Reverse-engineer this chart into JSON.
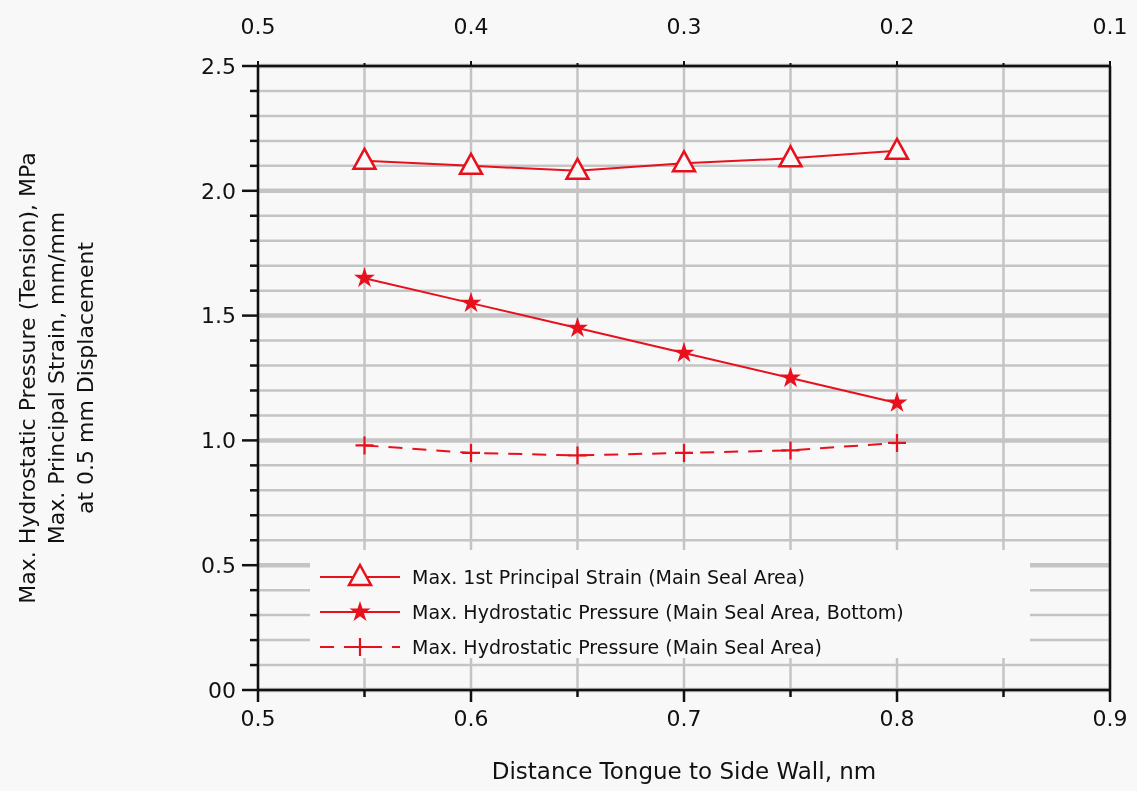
{
  "chart_data": {
    "type": "line",
    "xlabel": "Distance Tongue to Side Wall, nm",
    "ylabel": "Max. Hydrostatic Pressure (Tension), MPa\nMax. Principal Strain, mm/mm\nat 0.5 mm Displacement",
    "x": [
      0.55,
      0.6,
      0.65,
      0.7,
      0.75,
      0.8
    ],
    "series": [
      {
        "name": "Max. 1st Principal Strain (Main Seal Area)",
        "color": "#e8101c",
        "marker": "triangle",
        "line_style": "solid",
        "values": [
          2.12,
          2.1,
          2.08,
          2.11,
          2.13,
          2.16
        ]
      },
      {
        "name": "Max. Hydrostatic Pressure (Main Seal Area, Bottom)",
        "color": "#e8101c",
        "marker": "star",
        "line_style": "solid",
        "values": [
          1.65,
          1.55,
          1.45,
          1.35,
          1.25,
          1.15
        ]
      },
      {
        "name": "Max. Hydrostatic Pressure (Main Seal Area)",
        "color": "#e8101c",
        "marker": "cross",
        "line_style": "dashed",
        "values": [
          0.98,
          0.95,
          0.94,
          0.95,
          0.96,
          0.99
        ]
      }
    ],
    "xlim": [
      0.5,
      0.9
    ],
    "xticks": [
      0.5,
      {
        "value": 0.55,
        "label": null
      },
      {
        "value": 0.6,
        "label": "0.6"
      },
      {
        "value": 0.65,
        "label": null
      },
      {
        "value": 0.7,
        "label": "0.7"
      },
      {
        "value": 0.75,
        "label": null
      },
      {
        "value": 0.8,
        "label": "0.8"
      },
      {
        "value": 0.85,
        "label": null
      },
      {
        "value": 0.9,
        "label": "0.9"
      }
    ],
    "x2lim": [
      0.5,
      0.1
    ],
    "x2ticks": [
      0.5,
      {
        "value": 0.45,
        "label": null
      },
      {
        "value": 0.4,
        "label": "0.4"
      },
      {
        "value": 0.35,
        "label": null
      },
      {
        "value": 0.3,
        "label": "0.3"
      },
      {
        "value": 0.25,
        "label": null
      },
      {
        "value": 0.2,
        "label": "0.2"
      },
      {
        "value": 0.15,
        "label": null
      },
      {
        "value": 0.1,
        "label": "0.1"
      }
    ],
    "ylim": [
      0,
      2.5
    ],
    "yticks": [
      {
        "value": 0,
        "label": "00"
      },
      {
        "value": 0.1,
        "label": null
      },
      {
        "value": 0.2,
        "label": null
      },
      {
        "value": 0.3,
        "label": null
      },
      {
        "value": 0.4,
        "label": null
      },
      0.5,
      {
        "value": 0.6,
        "label": null
      },
      {
        "value": 0.7,
        "label": null
      },
      {
        "value": 0.8,
        "label": null
      },
      {
        "value": 0.9,
        "label": null
      },
      {
        "value": 1.0,
        "label": "1.0"
      },
      {
        "value": 1.1,
        "label": null
      },
      {
        "value": 1.2,
        "label": null
      },
      {
        "value": 1.3,
        "label": null
      },
      {
        "value": 1.4,
        "label": null
      },
      1.5,
      {
        "value": 1.6,
        "label": null
      },
      {
        "value": 1.7,
        "label": null
      },
      {
        "value": 1.8,
        "label": null
      },
      {
        "value": 1.9,
        "label": null
      },
      {
        "value": 2.0,
        "label": "2.0"
      },
      {
        "value": 2.1,
        "label": null
      },
      {
        "value": 2.2,
        "label": null
      },
      {
        "value": 2.3,
        "label": null
      },
      {
        "value": 2.4,
        "label": null
      },
      2.5
    ],
    "grid": true,
    "legend": "bottom"
  }
}
